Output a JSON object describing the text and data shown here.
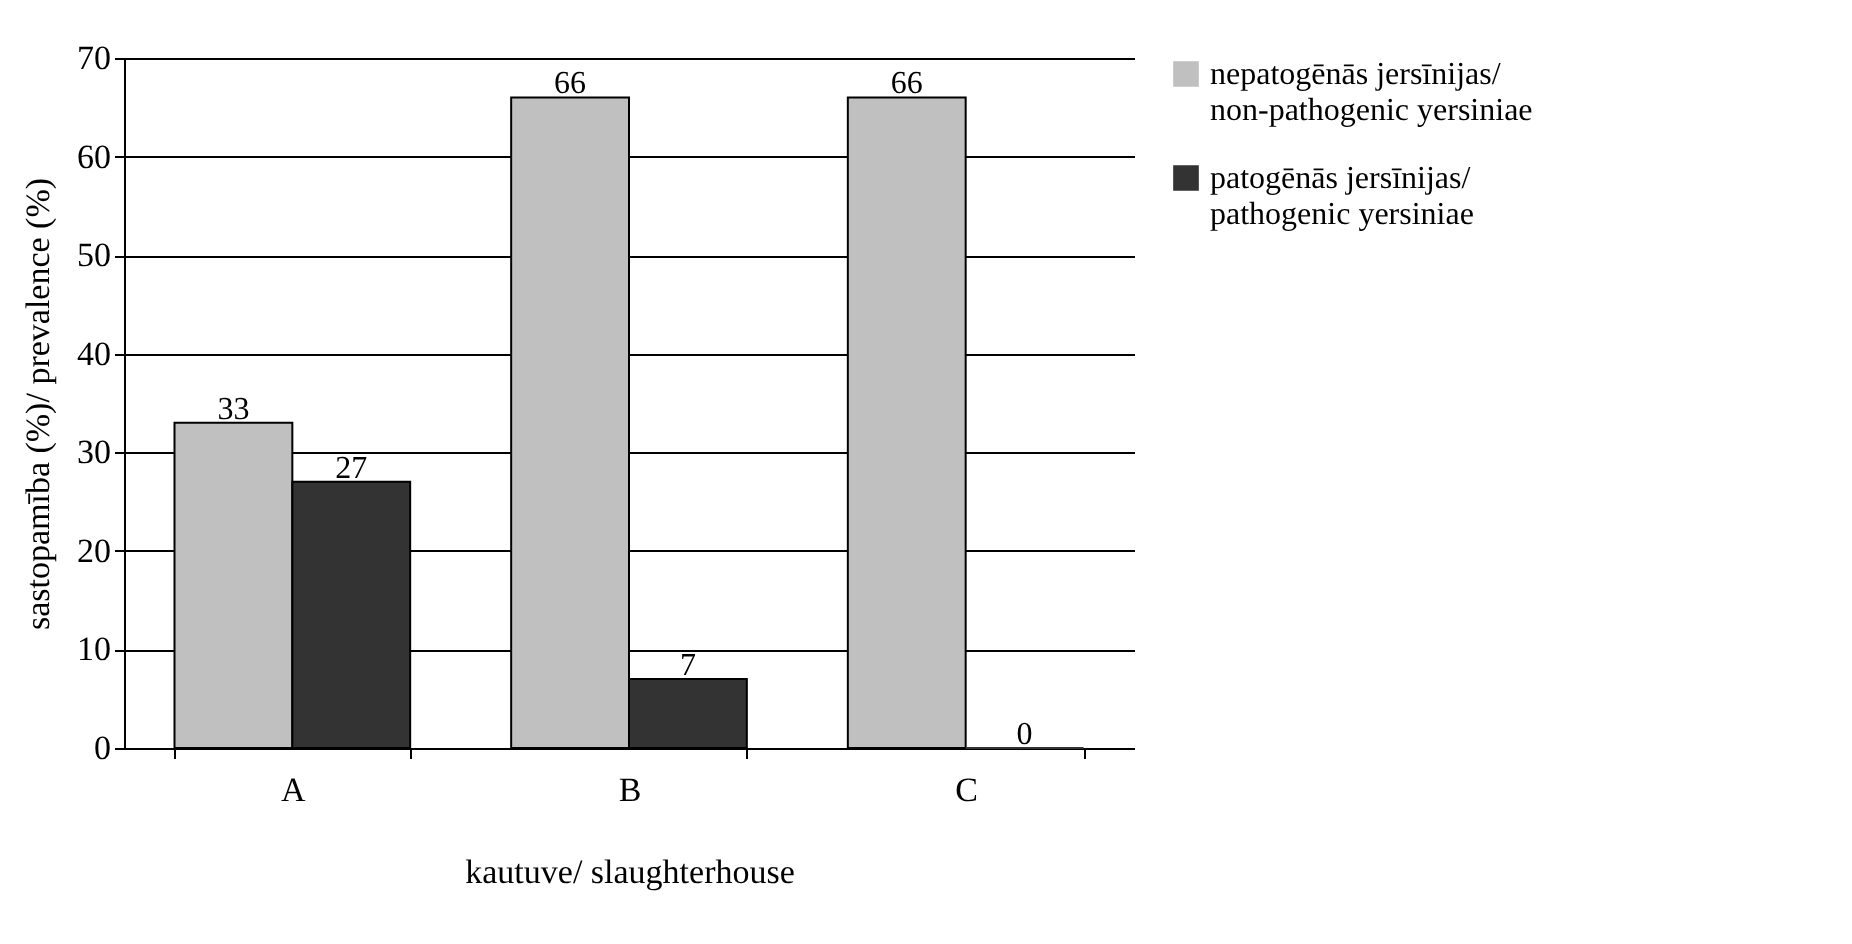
{
  "chart_data": {
    "type": "bar",
    "xlabel": "kautuve/ slaughterhouse",
    "ylabel": "sastopamība (%)/ prevalence (%)",
    "categories": [
      "A",
      "B",
      "C"
    ],
    "series": [
      {
        "name": "nepatogēnās jersīnijas/ non-pathogenic yersiniae",
        "color": "#c0c0c0",
        "values": [
          33,
          66,
          66
        ]
      },
      {
        "name": "patogēnās jersīnijas/ pathogenic yersiniae",
        "color": "#333333",
        "values": [
          27,
          7,
          0
        ]
      }
    ],
    "ylim": [
      0,
      70
    ],
    "yticks": [
      0,
      10,
      20,
      30,
      40,
      50,
      60,
      70
    ],
    "grid": "y",
    "legend": "right",
    "data_labels": true
  }
}
